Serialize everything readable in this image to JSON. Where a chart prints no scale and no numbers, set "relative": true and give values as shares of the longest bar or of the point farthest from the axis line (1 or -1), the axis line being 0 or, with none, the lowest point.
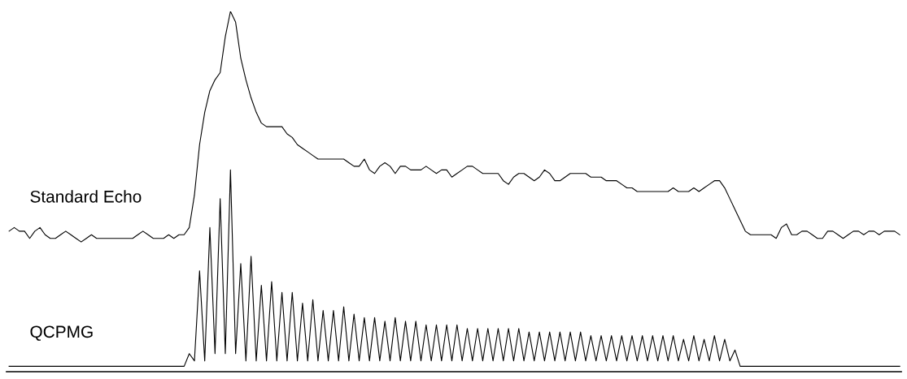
{
  "chart_data": {
    "type": "line",
    "relative": true,
    "legend": false,
    "tick_labels": false,
    "marker": "none",
    "line_style": "solid",
    "categories": [
      null,
      null,
      null,
      null,
      null,
      null,
      null,
      null,
      null,
      null,
      null,
      null,
      null,
      null,
      null,
      null,
      null,
      null,
      null,
      null,
      null,
      null,
      null,
      null,
      null,
      null,
      null,
      null,
      null,
      null,
      null,
      null,
      null,
      null,
      null,
      null,
      null,
      null,
      null,
      null,
      null,
      null,
      null,
      null,
      null,
      null,
      null,
      null,
      null,
      null,
      null,
      null,
      null,
      null,
      null,
      null,
      null,
      null,
      null,
      null,
      null,
      null,
      null,
      null,
      null,
      null,
      null,
      null,
      null,
      null,
      null,
      null,
      null,
      null,
      null,
      null,
      null,
      null,
      null,
      null,
      null,
      null,
      null,
      null,
      null,
      null,
      null,
      null,
      null,
      null,
      null,
      null,
      null,
      null,
      null,
      null,
      null,
      null,
      null,
      null,
      null,
      null,
      null,
      null,
      null,
      null,
      null,
      null,
      null,
      null,
      null,
      null,
      null,
      null,
      null,
      null,
      null,
      null,
      null,
      null,
      null,
      null,
      null,
      null,
      null,
      null,
      null,
      null,
      null,
      null,
      null,
      null,
      null,
      null,
      null,
      null,
      null,
      null,
      null,
      null,
      null,
      null,
      null,
      null,
      null,
      null,
      null,
      null,
      null,
      null,
      null,
      null,
      null,
      null,
      null,
      null,
      null,
      null,
      null,
      null,
      null,
      null,
      null,
      null,
      null,
      null,
      null,
      null,
      null,
      null,
      null,
      null,
      null,
      null
    ],
    "series": [
      {
        "name": "Standard Echo",
        "color": "#000000",
        "values": [
          0.39,
          0.4,
          0.39,
          0.39,
          0.37,
          0.39,
          0.4,
          0.38,
          0.37,
          0.37,
          0.38,
          0.39,
          0.38,
          0.37,
          0.36,
          0.37,
          0.38,
          0.37,
          0.37,
          0.37,
          0.37,
          0.37,
          0.37,
          0.37,
          0.37,
          0.38,
          0.39,
          0.38,
          0.37,
          0.37,
          0.37,
          0.38,
          0.37,
          0.38,
          0.38,
          0.4,
          0.49,
          0.63,
          0.72,
          0.78,
          0.81,
          0.83,
          0.93,
          1.0,
          0.97,
          0.87,
          0.81,
          0.76,
          0.72,
          0.69,
          0.68,
          0.68,
          0.68,
          0.68,
          0.66,
          0.65,
          0.63,
          0.62,
          0.61,
          0.6,
          0.59,
          0.59,
          0.59,
          0.59,
          0.59,
          0.59,
          0.58,
          0.57,
          0.57,
          0.59,
          0.56,
          0.55,
          0.57,
          0.58,
          0.57,
          0.55,
          0.57,
          0.57,
          0.56,
          0.56,
          0.56,
          0.57,
          0.56,
          0.55,
          0.56,
          0.56,
          0.54,
          0.55,
          0.56,
          0.57,
          0.57,
          0.56,
          0.55,
          0.55,
          0.55,
          0.55,
          0.53,
          0.52,
          0.54,
          0.55,
          0.55,
          0.54,
          0.53,
          0.54,
          0.56,
          0.55,
          0.53,
          0.53,
          0.54,
          0.55,
          0.55,
          0.55,
          0.55,
          0.54,
          0.54,
          0.54,
          0.53,
          0.53,
          0.53,
          0.52,
          0.51,
          0.51,
          0.5,
          0.5,
          0.5,
          0.5,
          0.5,
          0.5,
          0.5,
          0.51,
          0.5,
          0.5,
          0.5,
          0.51,
          0.5,
          0.51,
          0.52,
          0.53,
          0.53,
          0.51,
          0.48,
          0.45,
          0.42,
          0.39,
          0.38,
          0.38,
          0.38,
          0.38,
          0.38,
          0.37,
          0.4,
          0.41,
          0.38,
          0.38,
          0.39,
          0.39,
          0.38,
          0.37,
          0.37,
          0.39,
          0.39,
          0.38,
          0.37,
          0.38,
          0.39,
          0.39,
          0.38,
          0.39,
          0.39,
          0.38,
          0.39,
          0.39,
          0.39,
          0.38
        ]
      },
      {
        "name": "QCPMG",
        "color": "#000000",
        "values": [
          0.015,
          0.015,
          0.015,
          0.015,
          0.015,
          0.015,
          0.015,
          0.015,
          0.015,
          0.015,
          0.015,
          0.015,
          0.015,
          0.015,
          0.015,
          0.015,
          0.015,
          0.015,
          0.015,
          0.015,
          0.015,
          0.015,
          0.015,
          0.015,
          0.015,
          0.015,
          0.015,
          0.015,
          0.015,
          0.015,
          0.015,
          0.015,
          0.015,
          0.015,
          0.015,
          0.05,
          0.03,
          0.28,
          0.03,
          0.4,
          0.05,
          0.48,
          0.05,
          0.56,
          0.05,
          0.3,
          0.03,
          0.32,
          0.03,
          0.24,
          0.03,
          0.25,
          0.03,
          0.22,
          0.03,
          0.22,
          0.03,
          0.19,
          0.03,
          0.2,
          0.03,
          0.17,
          0.03,
          0.17,
          0.03,
          0.18,
          0.03,
          0.16,
          0.03,
          0.15,
          0.03,
          0.15,
          0.03,
          0.14,
          0.03,
          0.15,
          0.03,
          0.14,
          0.03,
          0.14,
          0.03,
          0.13,
          0.03,
          0.13,
          0.03,
          0.13,
          0.03,
          0.13,
          0.03,
          0.12,
          0.03,
          0.12,
          0.03,
          0.12,
          0.03,
          0.12,
          0.03,
          0.12,
          0.03,
          0.12,
          0.03,
          0.11,
          0.03,
          0.11,
          0.03,
          0.11,
          0.03,
          0.11,
          0.03,
          0.11,
          0.03,
          0.11,
          0.03,
          0.1,
          0.03,
          0.1,
          0.03,
          0.1,
          0.03,
          0.1,
          0.03,
          0.1,
          0.03,
          0.1,
          0.03,
          0.1,
          0.03,
          0.1,
          0.03,
          0.1,
          0.03,
          0.09,
          0.03,
          0.1,
          0.03,
          0.09,
          0.03,
          0.1,
          0.03,
          0.09,
          0.03,
          0.06,
          0.015,
          0.015,
          0.015,
          0.015,
          0.015,
          0.015,
          0.015,
          0.015,
          0.015,
          0.015,
          0.015,
          0.015,
          0.015,
          0.015,
          0.015,
          0.015,
          0.015,
          0.015,
          0.015,
          0.015,
          0.015,
          0.015,
          0.015,
          0.015,
          0.015,
          0.015,
          0.015,
          0.015,
          0.015,
          0.015,
          0.015,
          0.015
        ]
      }
    ]
  }
}
